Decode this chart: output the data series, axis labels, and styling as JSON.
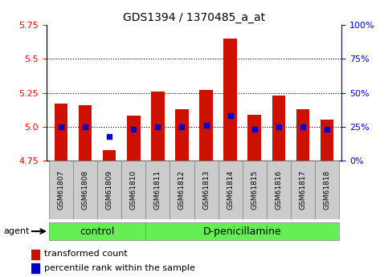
{
  "title": "GDS1394 / 1370485_a_at",
  "samples": [
    "GSM61807",
    "GSM61808",
    "GSM61809",
    "GSM61810",
    "GSM61811",
    "GSM61812",
    "GSM61813",
    "GSM61814",
    "GSM61815",
    "GSM61816",
    "GSM61817",
    "GSM61818"
  ],
  "transformed_count": [
    5.17,
    5.16,
    4.83,
    5.08,
    5.26,
    5.13,
    5.27,
    5.65,
    5.09,
    5.23,
    5.13,
    5.05
  ],
  "percentile_rank": [
    25,
    25,
    18,
    23,
    25,
    25,
    26,
    33,
    23,
    25,
    25,
    23
  ],
  "bar_bottom": 4.75,
  "ylim_left": [
    4.75,
    5.75
  ],
  "ylim_right": [
    0,
    100
  ],
  "yticks_left": [
    4.75,
    5.0,
    5.25,
    5.5,
    5.75
  ],
  "yticks_right": [
    0,
    25,
    50,
    75,
    100
  ],
  "ytick_labels_right": [
    "0%",
    "25%",
    "50%",
    "75%",
    "100%"
  ],
  "gridlines": [
    5.0,
    5.25,
    5.5
  ],
  "bar_color": "#cc1100",
  "dot_color": "#0000cc",
  "control_indices": [
    0,
    1,
    2,
    3
  ],
  "treatment_indices": [
    4,
    5,
    6,
    7,
    8,
    9,
    10,
    11
  ],
  "control_label": "control",
  "treatment_label": "D-penicillamine",
  "group_color": "#66ee55",
  "tick_area_color": "#cccccc",
  "agent_label": "agent",
  "legend_bar_label": "transformed count",
  "legend_dot_label": "percentile rank within the sample",
  "bar_width": 0.55
}
